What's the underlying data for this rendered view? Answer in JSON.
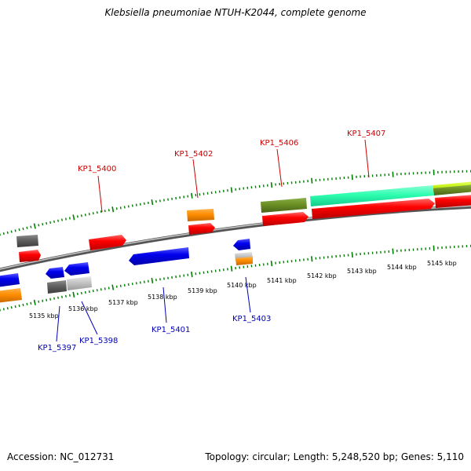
{
  "title": "Klebsiella pneumoniae NTUH-K2044, complete genome",
  "footer": {
    "accession": "Accession: NC_012731",
    "summary": "Topology: circular; Length: 5,248,520 bp; Genes: 5,110"
  },
  "colors": {
    "forward_label": "#cc0000",
    "reverse_label": "#0000bb",
    "tick": "#008000",
    "backbone": "#808080"
  },
  "scale": {
    "unit": "kbp",
    "ticks": [
      "5135 kbp",
      "5136 kbp",
      "5137 kbp",
      "5138 kbp",
      "5139 kbp",
      "5140 kbp",
      "5141 kbp",
      "5142 kbp",
      "5143 kbp",
      "5144 kbp",
      "5145 kbp"
    ]
  },
  "gene_labels": {
    "forward": [
      "KP1_5400",
      "KP1_5402",
      "KP1_5406",
      "KP1_5407"
    ],
    "reverse": [
      "KP1_5397",
      "KP1_5398",
      "KP1_5401",
      "KP1_5403"
    ]
  }
}
